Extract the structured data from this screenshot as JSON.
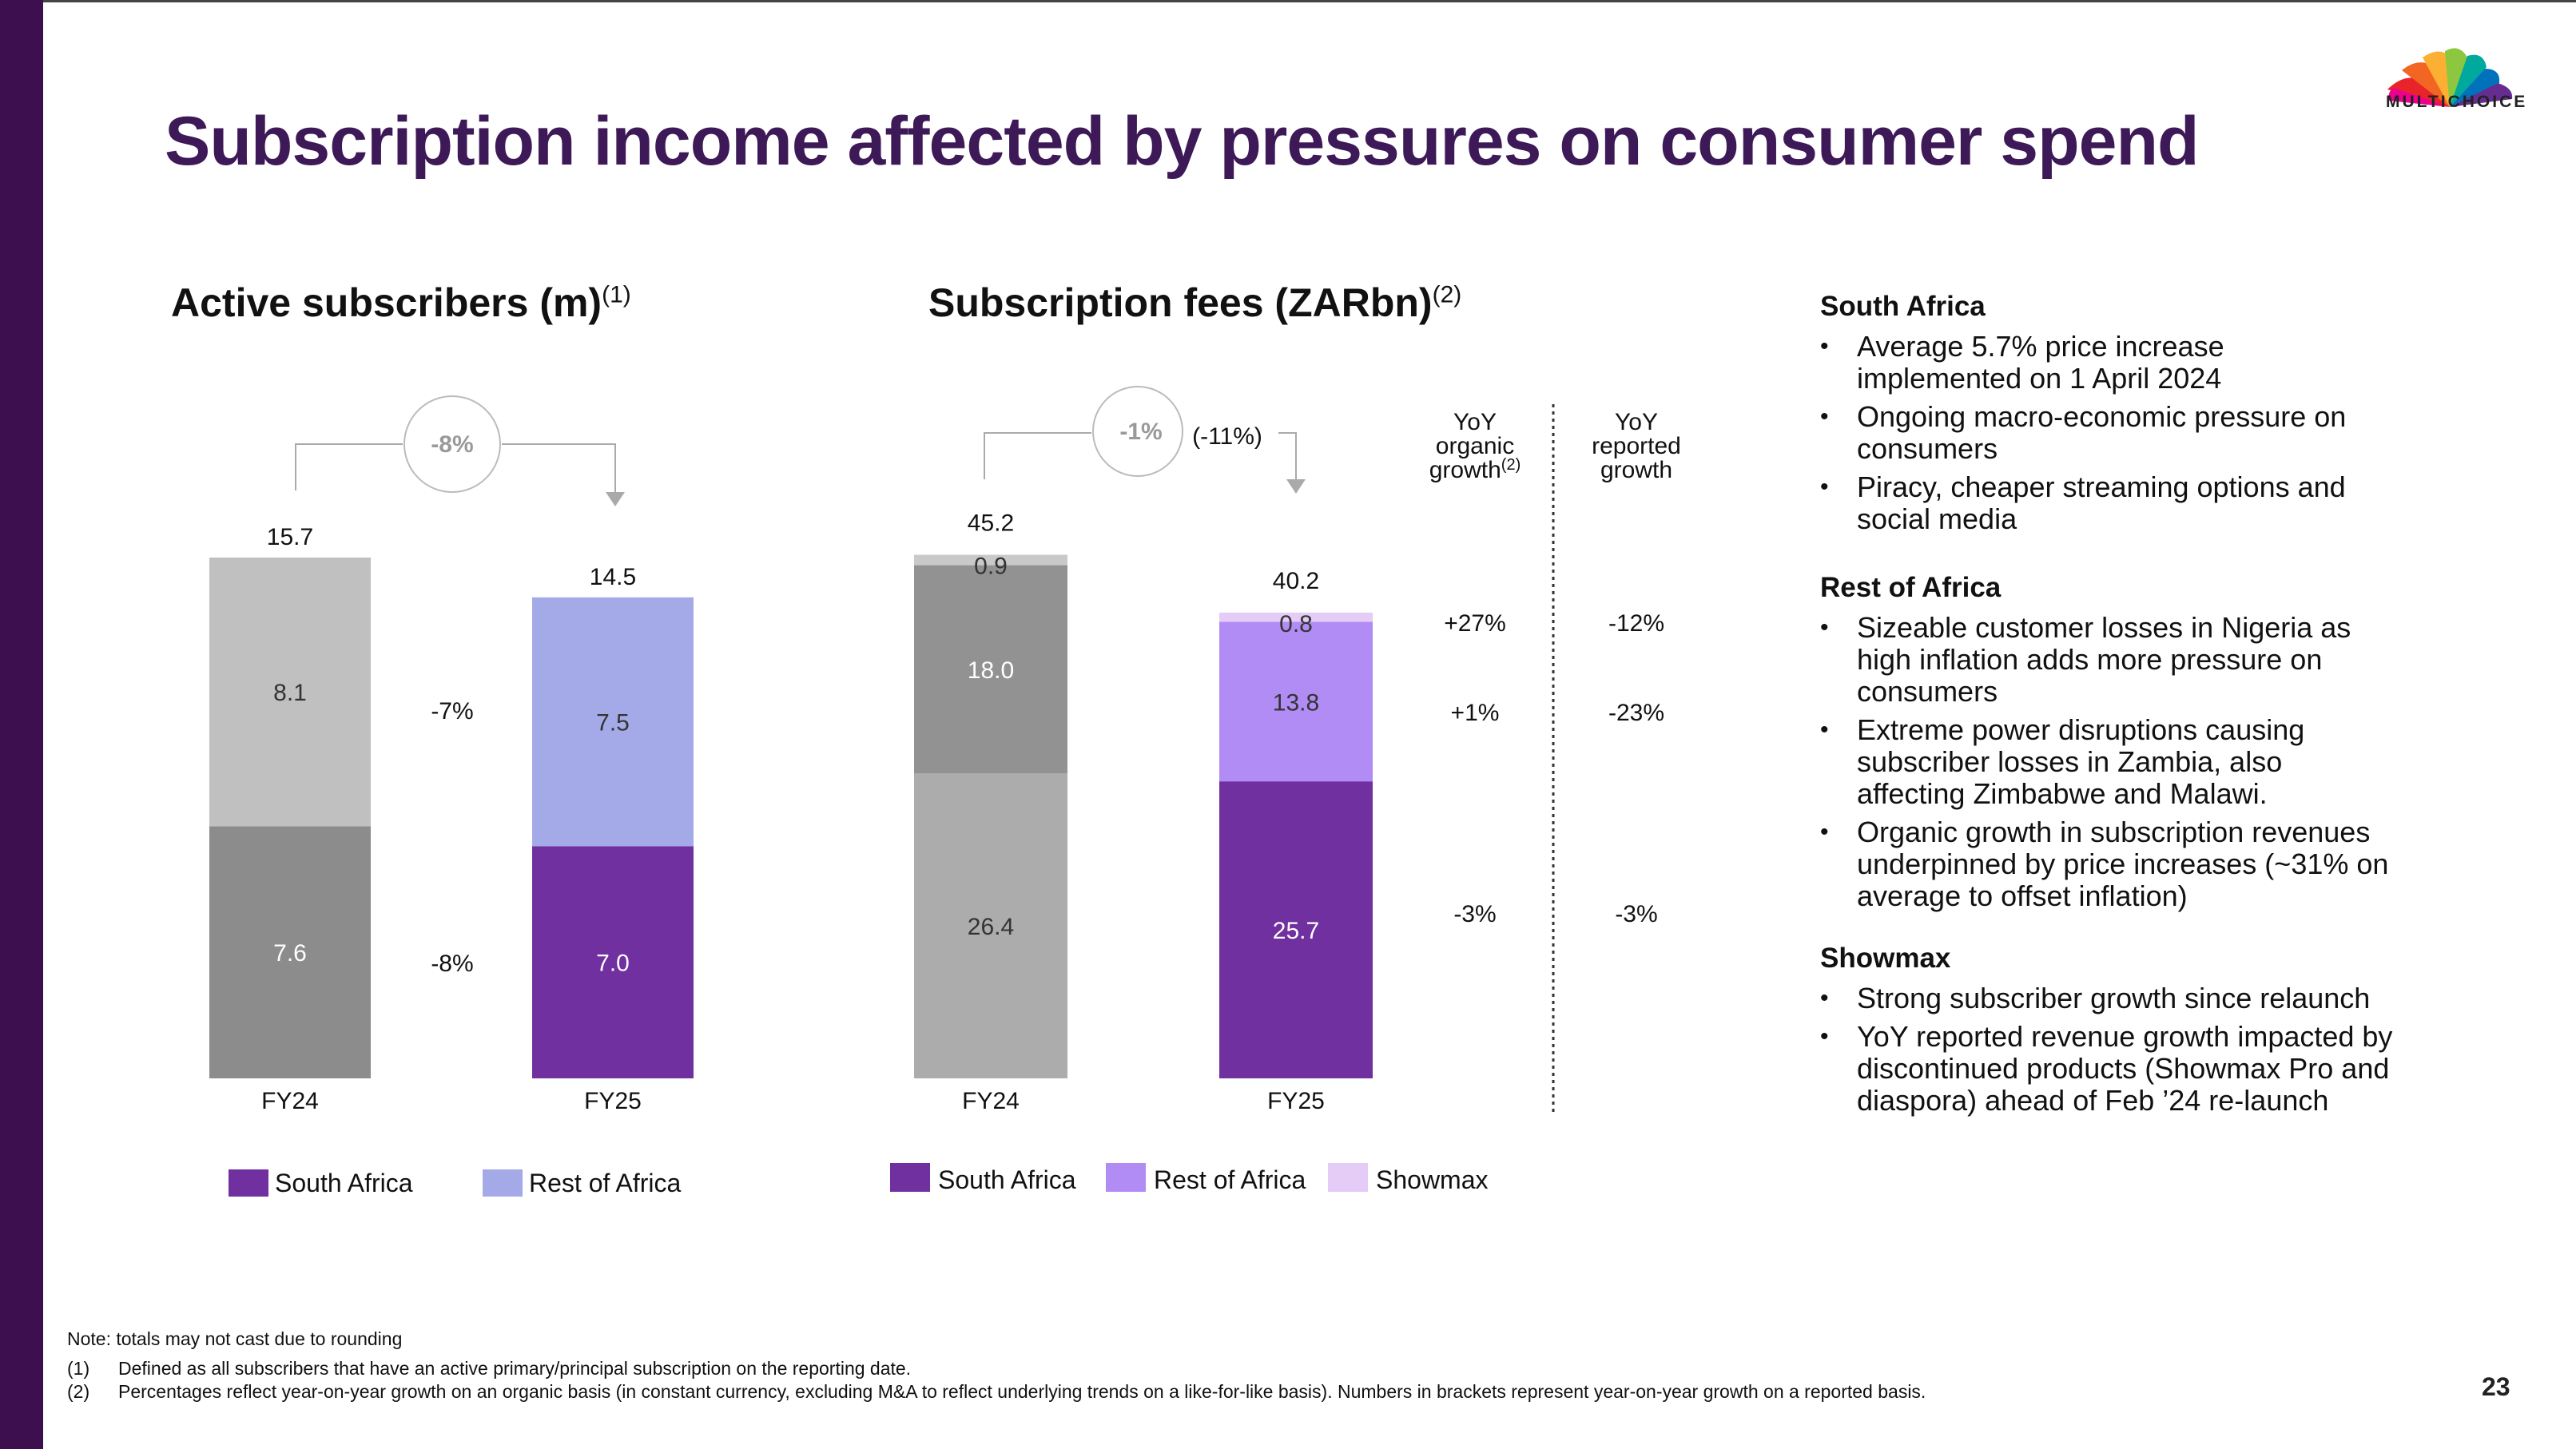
{
  "title": "Subscription income affected by pressures on consumer spend",
  "logo_text": "MULTICHOICE",
  "page_number": "23",
  "colors": {
    "sa_bar": "#7030a0",
    "roa_bar_subs": "#a4aae8",
    "roa_bar_fees": "#b08cf4",
    "showmax": "#e4ccf6",
    "grey_light": "#c0c0c0",
    "grey_mid": "#8c8c8c",
    "grey_fees_top": "#c9c9c9",
    "grey_fees_mid": "#929292",
    "grey_fees_low": "#acacac"
  },
  "chart_data": [
    {
      "type": "bar",
      "title": "Active subscribers (m)",
      "title_sup": "(1)",
      "categories": [
        "FY24",
        "FY25"
      ],
      "totals": [
        "15.7",
        "14.5"
      ],
      "series": [
        {
          "name": "South Africa",
          "values": [
            7.6,
            7.0
          ],
          "labels": [
            "7.6",
            "7.0"
          ]
        },
        {
          "name": "Rest of Africa",
          "values": [
            8.1,
            7.5
          ],
          "labels": [
            "8.1",
            "7.5"
          ]
        }
      ],
      "growth_total": "-8%",
      "growth_segments": [
        "-8%",
        "-7%"
      ],
      "legend": [
        "South Africa",
        "Rest of Africa"
      ],
      "ylim": [
        0,
        15.7
      ]
    },
    {
      "type": "bar",
      "title": "Subscription fees (ZARbn)",
      "title_sup": "(2)",
      "categories": [
        "FY24",
        "FY25"
      ],
      "totals": [
        "45.2",
        "40.2"
      ],
      "series": [
        {
          "name": "South Africa",
          "values": [
            26.4,
            25.7
          ],
          "labels": [
            "26.4",
            "25.7"
          ]
        },
        {
          "name": "Rest of Africa",
          "values": [
            18.0,
            13.8
          ],
          "labels": [
            "18.0",
            "13.8"
          ]
        },
        {
          "name": "Showmax",
          "values": [
            0.9,
            0.8
          ],
          "labels": [
            "0.9",
            "0.8"
          ]
        }
      ],
      "growth_total": "-1%",
      "growth_total_reported": "(-11%)",
      "legend": [
        "South Africa",
        "Rest of Africa",
        "Showmax"
      ],
      "ylim": [
        0,
        45.2
      ],
      "growth_table": {
        "col1_header": [
          "YoY",
          "organic",
          "growth"
        ],
        "col1_sup": "(2)",
        "col2_header": [
          "YoY",
          "reported",
          "growth"
        ],
        "rows": [
          {
            "series": "Showmax",
            "organic": "+27%",
            "reported": "-12%"
          },
          {
            "series": "Rest of Africa",
            "organic": "+1%",
            "reported": "-23%"
          },
          {
            "series": "South Africa",
            "organic": "-3%",
            "reported": "-3%"
          }
        ]
      }
    }
  ],
  "commentary": [
    {
      "heading": "South Africa",
      "bullets": [
        "Average 5.7% price increase implemented on 1 April 2024",
        "Ongoing macro-economic pressure on consumers",
        "Piracy, cheaper streaming options and social media"
      ]
    },
    {
      "heading": "Rest of Africa",
      "bullets": [
        "Sizeable customer losses in Nigeria as high inflation adds more pressure on consumers",
        "Extreme power disruptions causing subscriber losses in Zambia, also affecting Zimbabwe and Malawi.",
        "Organic growth in subscription revenues underpinned by price increases (~31% on average to offset inflation)"
      ]
    },
    {
      "heading": "Showmax",
      "bullets": [
        "Strong subscriber growth since relaunch",
        "YoY reported revenue growth impacted by discontinued products (Showmax Pro and diaspora) ahead of Feb ’24 re-launch"
      ]
    }
  ],
  "notes": {
    "note": "Note: totals may not cast due to rounding",
    "footnotes": [
      {
        "mark": "(1)",
        "text": "Defined as all subscribers that have an active primary/principal subscription on the reporting date."
      },
      {
        "mark": "(2)",
        "text": "Percentages reflect year-on-year growth on an organic basis (in constant currency, excluding M&A to reflect underlying trends on a like-for-like basis). Numbers in brackets represent year-on-year growth on a reported basis."
      }
    ]
  }
}
